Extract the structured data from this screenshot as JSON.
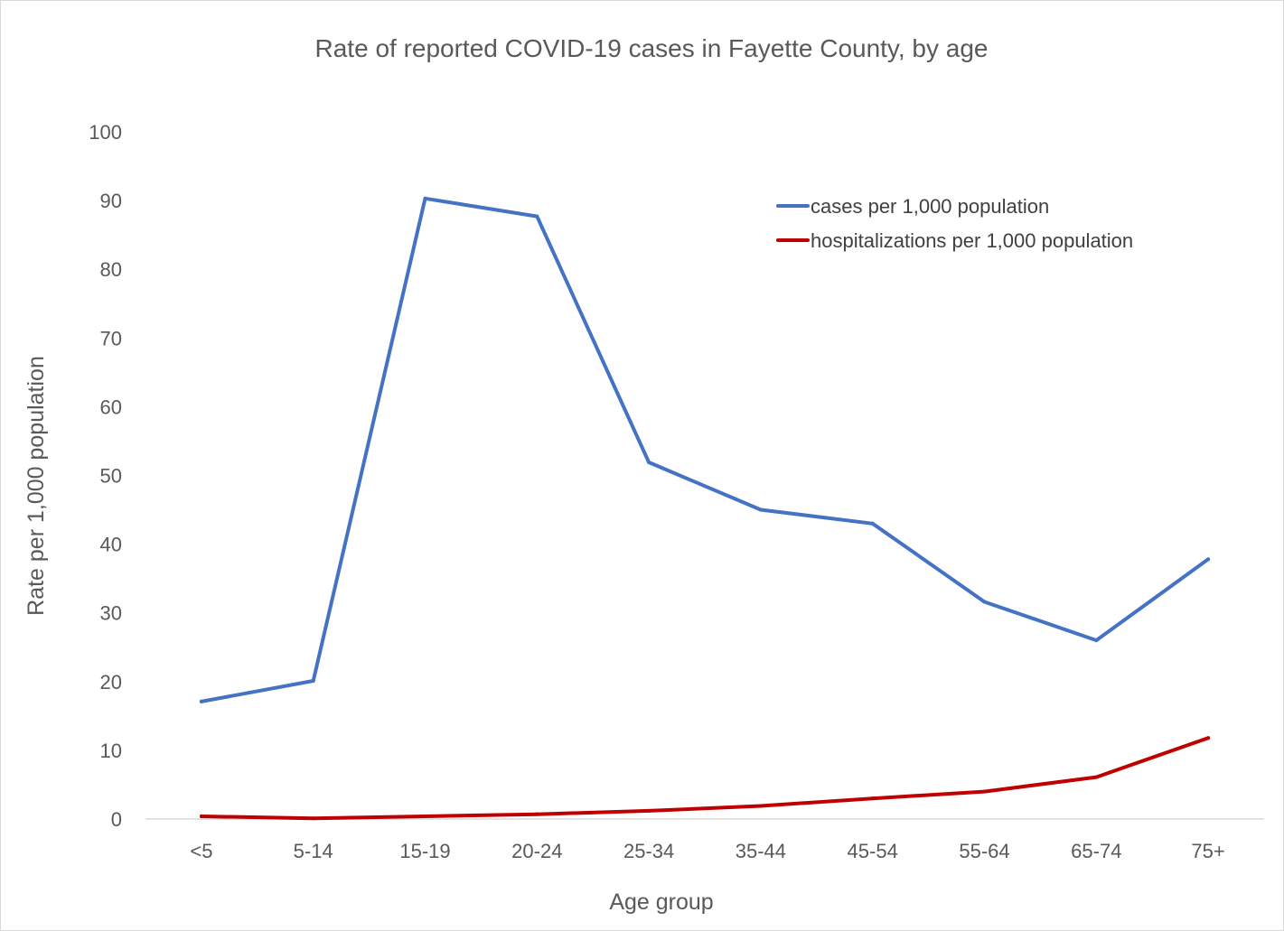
{
  "chart_data": {
    "type": "line",
    "title": "Rate of reported COVID-19 cases in Fayette County, by age",
    "xlabel": "Age group",
    "ylabel": "Rate per 1,000 population",
    "categories": [
      "<5",
      "5-14",
      "15-19",
      "20-24",
      "25-34",
      "35-44",
      "45-54",
      "55-64",
      "65-74",
      "75+"
    ],
    "ylim": [
      0,
      100
    ],
    "yticks": [
      0,
      10,
      20,
      30,
      40,
      50,
      60,
      70,
      80,
      90,
      100
    ],
    "grid": false,
    "legend_position": "top-right",
    "series": [
      {
        "name": "cases per 1,000 population",
        "color": "#4472c4",
        "values": [
          17.1,
          20.1,
          90.3,
          87.7,
          51.9,
          45.0,
          43.0,
          31.6,
          26.0,
          37.8
        ]
      },
      {
        "name": "hospitalizations per 1,000 population",
        "color": "#c00000",
        "values": [
          0.4,
          0.1,
          0.4,
          0.7,
          1.2,
          1.9,
          3.0,
          4.0,
          6.1,
          11.8
        ]
      }
    ]
  }
}
